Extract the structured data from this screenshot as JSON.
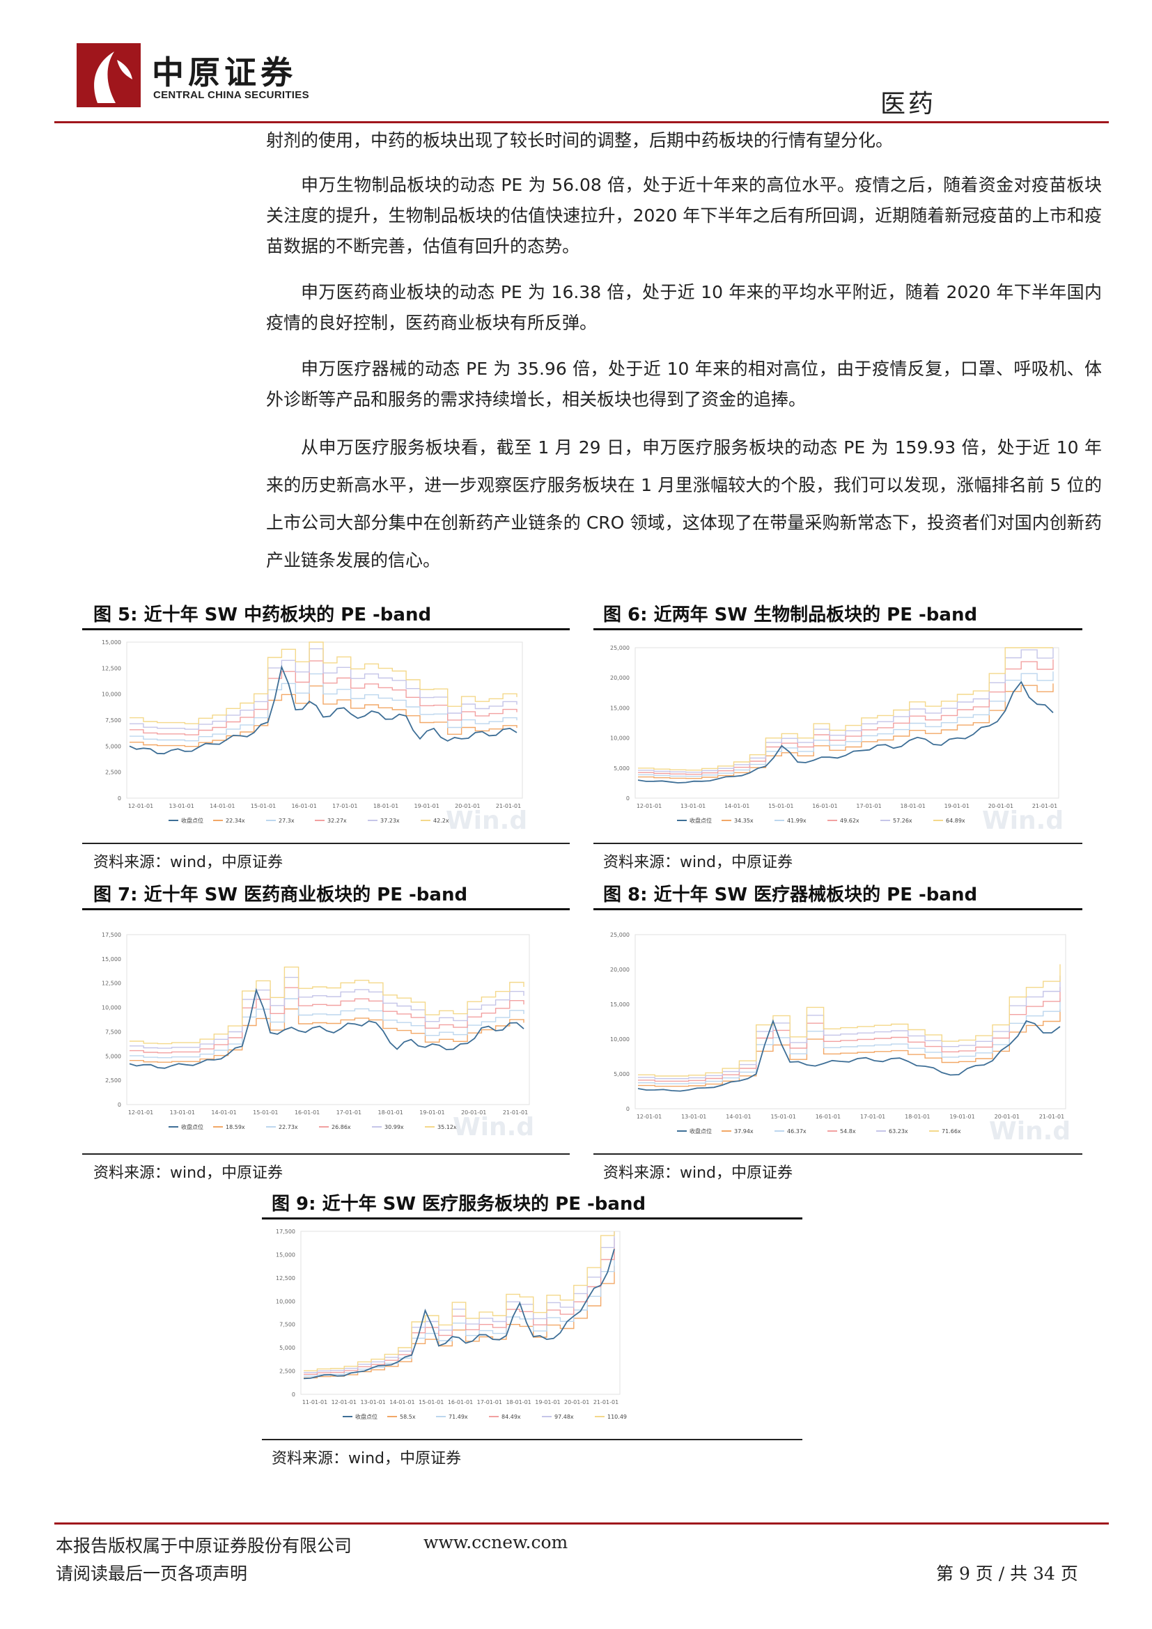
{
  "header": {
    "logo_cn": "中原证券",
    "logo_en": "CENTRAL CHINA SECURITIES",
    "sector": "医药"
  },
  "body": {
    "p0": "射剂的使用，中药的板块出现了较长时间的调整，后期中药板块的行情有望分化。",
    "p1": "申万生物制品板块的动态 PE 为 56.08 倍，处于近十年来的高位水平。疫情之后，随着资金对疫苗板块关注度的提升，生物制品板块的估值快速拉升，2020 年下半年之后有所回调，近期随着新冠疫苗的上市和疫苗数据的不断完善，估值有回升的态势。",
    "p2": "申万医药商业板块的动态 PE 为 16.38 倍，处于近 10 年来的平均水平附近，随着 2020 年下半年国内疫情的良好控制，医药商业板块有所反弹。",
    "p3": "申万医疗器械的动态 PE 为 35.96 倍，处于近 10 年来的相对高位，由于疫情反复，口罩、呼吸机、体外诊断等产品和服务的需求持续增长，相关板块也得到了资金的追捧。",
    "p4": "从申万医疗服务板块看，截至 1 月 29 日，申万医疗服务板块的动态 PE 为 159.93 倍，处于近 10 年来的历史新高水平，进一步观察医疗服务板块在 1 月里涨幅较大的个股，我们可以发现，涨幅排名前 5 位的上市公司大部分集中在创新药产业链条的 CRO 领域，这体现了在带量采购新常态下，投资者们对国内创新药产业链条发展的信心。"
  },
  "figures": [
    {
      "title": "图 5:  近十年 SW 中药板块的 PE -band",
      "source": "资料来源：wind，中原证券",
      "watermark": "Win.d"
    },
    {
      "title": "图 6:  近两年 SW 生物制品板块的 PE -band",
      "source": "资料来源：wind，中原证券",
      "watermark": "Win.d"
    },
    {
      "title": "图 7:  近十年 SW 医药商业板块的 PE -band",
      "source": "资料来源：wind，中原证券",
      "watermark": "Win.d"
    },
    {
      "title": "图 8:  近十年 SW 医疗器械板块的 PE -band",
      "source": "资料来源：wind，中原证券",
      "watermark": "Win.d"
    },
    {
      "title": "图 9:  近十年 SW 医疗服务板块的 PE -band",
      "source": "资料来源：wind，中原证券",
      "watermark": ""
    }
  ],
  "chart_data": [
    {
      "type": "line",
      "title": "图 5:  近十年 SW 中药板块的 PE -band",
      "y_ticks": [
        "15,000",
        "12,500",
        "10,000",
        "7,500",
        "5,000",
        "2,500",
        "0"
      ],
      "ylim": [
        0,
        15000
      ],
      "x_ticks": [
        "12-01-01",
        "13-01-01",
        "14-01-01",
        "15-01-01",
        "16-01-01",
        "17-01-01",
        "18-01-01",
        "19-01-01",
        "20-01-01",
        "21-01-01"
      ],
      "legend": [
        "收盘点位",
        "22.34x",
        "27.3x",
        "32.27x",
        "37.23x",
        "42.2x"
      ],
      "series_colors": [
        "#3d6e96",
        "#f2a766",
        "#bcd6ee",
        "#f2a0a0",
        "#c5c5e8",
        "#f4d88a"
      ],
      "band_multipliers": [
        0.6,
        0.73,
        0.87,
        1.0,
        1.13
      ],
      "close": [
        5000,
        4800,
        4300,
        4600,
        4500,
        4900,
        5200,
        5600,
        6000,
        6300,
        7300,
        12600,
        8500,
        9300,
        7800,
        8600,
        8100,
        7900,
        8200,
        7600,
        7900,
        5700,
        6700,
        5500,
        5700,
        6300,
        6000,
        6600,
        6300
      ]
    },
    {
      "type": "line",
      "title": "图 6:  近两年 SW 生物制品板块的 PE -band",
      "y_ticks": [
        "25,000",
        "20,000",
        "15,000",
        "10,000",
        "5,000",
        "0"
      ],
      "ylim": [
        0,
        25000
      ],
      "x_ticks": [
        "12-01-01",
        "13-01-01",
        "14-01-01",
        "15-01-01",
        "16-01-01",
        "17-01-01",
        "18-01-01",
        "19-01-01",
        "20-01-01",
        "21-01-01"
      ],
      "legend": [
        "收盘点位",
        "34.35x",
        "41.99x",
        "49.62x",
        "57.26x",
        "64.89x"
      ],
      "series_colors": [
        "#3d6e96",
        "#f2a766",
        "#bcd6ee",
        "#f2a0a0",
        "#c5c5e8",
        "#f4d88a"
      ],
      "band_multipliers": [
        0.72,
        0.86,
        1.0,
        1.14,
        1.28
      ],
      "close": [
        3000,
        2800,
        2700,
        2600,
        2800,
        3200,
        3600,
        4200,
        5300,
        8700,
        6000,
        6300,
        6800,
        7100,
        7900,
        8800,
        8300,
        9600,
        9800,
        8800,
        10000,
        10600,
        12000,
        14500,
        19300,
        15600,
        14200
      ]
    },
    {
      "type": "line",
      "title": "图 7:  近十年 SW 医药商业板块的 PE -band",
      "y_ticks": [
        "17,500",
        "15,000",
        "12,500",
        "10,000",
        "7,500",
        "5,000",
        "2,500",
        "0"
      ],
      "ylim": [
        0,
        17500
      ],
      "x_ticks": [
        "12-01-01",
        "13-01-01",
        "14-01-01",
        "15-01-01",
        "16-01-01",
        "17-01-01",
        "18-01-01",
        "19-01-01",
        "20-01-01",
        "21-01-01"
      ],
      "legend": [
        "收盘点位",
        "18.59x",
        "22.73x",
        "26.86x",
        "30.99x",
        "35.12x"
      ],
      "series_colors": [
        "#3d6e96",
        "#f2a766",
        "#bcd6ee",
        "#f2a0a0",
        "#c5c5e8",
        "#f4d88a"
      ],
      "band_multipliers": [
        0.6,
        0.73,
        0.87,
        1.0,
        1.13
      ],
      "close": [
        4200,
        4100,
        3800,
        4000,
        4100,
        4300,
        4600,
        5200,
        6000,
        11800,
        7400,
        7700,
        7600,
        7900,
        7600,
        7800,
        8300,
        8600,
        7600,
        5700,
        6700,
        5900,
        6100,
        5700,
        6300,
        7900,
        7600,
        8400,
        7800
      ]
    },
    {
      "type": "line",
      "title": "图 8:  近十年 SW 医疗器械板块的 PE -band",
      "y_ticks": [
        "25,000",
        "20,000",
        "15,000",
        "10,000",
        "5,000",
        "0"
      ],
      "ylim": [
        0,
        25000
      ],
      "x_ticks": [
        "12-01-01",
        "13-01-01",
        "14-01-01",
        "15-01-01",
        "16-01-01",
        "17-01-01",
        "18-01-01",
        "19-01-01",
        "20-01-01",
        "21-01-01"
      ],
      "legend": [
        "收盘点位",
        "37.94x",
        "46.37x",
        "54.8x",
        "63.23x",
        "71.66x"
      ],
      "series_colors": [
        "#3d6e96",
        "#f2a766",
        "#bcd6ee",
        "#f2a0a0",
        "#c5c5e8",
        "#f4d88a"
      ],
      "band_multipliers": [
        0.7,
        0.85,
        1.0,
        1.15,
        1.3
      ],
      "close": [
        2900,
        2700,
        2600,
        2700,
        3000,
        3400,
        4000,
        5000,
        12600,
        6700,
        6300,
        6500,
        6800,
        7200,
        6900,
        7200,
        6800,
        6100,
        5200,
        4900,
        6200,
        6900,
        9200,
        12600,
        10900,
        11800
      ]
    },
    {
      "type": "line",
      "title": "图 9:  近十年 SW 医疗服务板块的 PE -band",
      "y_ticks": [
        "17,500",
        "15,000",
        "12,500",
        "10,000",
        "7,500",
        "5,000",
        "2,500",
        "0"
      ],
      "ylim": [
        0,
        17500
      ],
      "x_ticks": [
        "11-01-01",
        "12-01-01",
        "13-01-01",
        "14-01-01",
        "15-01-01",
        "16-01-01",
        "17-01-01",
        "18-01-01",
        "19-01-01",
        "20-01-01",
        "21-01-01"
      ],
      "legend": [
        "收盘点位",
        "58.5x",
        "71.49x",
        "84.49x",
        "97.48x",
        "110.49x"
      ],
      "series_colors": [
        "#3d6e96",
        "#f2a766",
        "#bcd6ee",
        "#f2a0a0",
        "#c5c5e8",
        "#f4d88a"
      ],
      "band_multipliers": [
        0.5,
        0.62,
        0.74,
        0.86,
        0.98
      ],
      "close": [
        1700,
        1900,
        2100,
        2000,
        2400,
        2800,
        3100,
        3500,
        4200,
        9000,
        5200,
        6200,
        5500,
        6400,
        5900,
        6300,
        9800,
        6200,
        5900,
        6600,
        8400,
        10200,
        11700,
        15600
      ]
    }
  ],
  "footer": {
    "copyright": "本报告版权属于中原证券股份有限公司",
    "website": "www.ccnew.com",
    "disclaimer": "请阅读最后一页各项声明",
    "page": "第 9 页 / 共 34 页"
  }
}
